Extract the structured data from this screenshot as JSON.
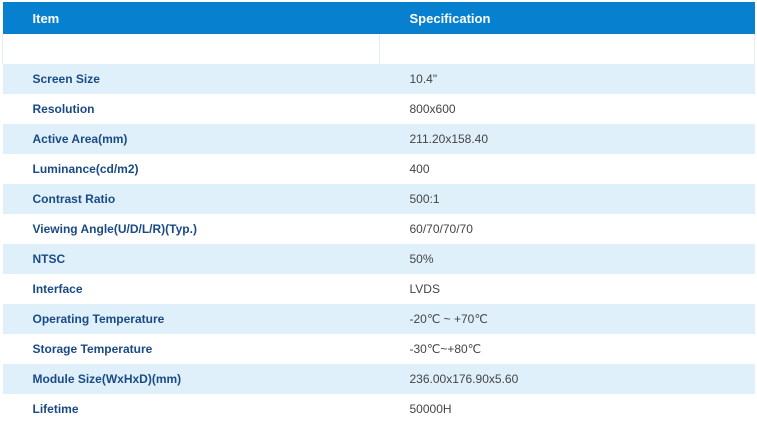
{
  "header": {
    "item_label": "Item",
    "spec_label": "Specification"
  },
  "colors": {
    "header_bg": "#0880d0",
    "alt_row_bg": "#dff0fb",
    "item_text": "#1a4a86",
    "value_text": "#444444"
  },
  "rows": [
    {
      "item": "Screen Size",
      "value": "10.4\""
    },
    {
      "item": "Resolution",
      "value": "800x600"
    },
    {
      "item": "Active Area(mm)",
      "value": "211.20x158.40"
    },
    {
      "item": "Luminance(cd/m2)",
      "value": "400"
    },
    {
      "item": "Contrast Ratio",
      "value": "500:1"
    },
    {
      "item": "Viewing Angle(U/D/L/R)(Typ.)",
      "value": "60/70/70/70"
    },
    {
      "item": "NTSC",
      "value": "50%"
    },
    {
      "item": "Interface",
      "value": "LVDS"
    },
    {
      "item": "Operating Temperature",
      "value": "-20℃ ~ +70℃"
    },
    {
      "item": "Storage Temperature",
      "value": "-30℃~+80℃"
    },
    {
      "item": "Module Size(WxHxD)(mm)",
      "value": "236.00x176.90x5.60"
    },
    {
      "item": "Lifetime",
      "value": "50000H"
    }
  ]
}
